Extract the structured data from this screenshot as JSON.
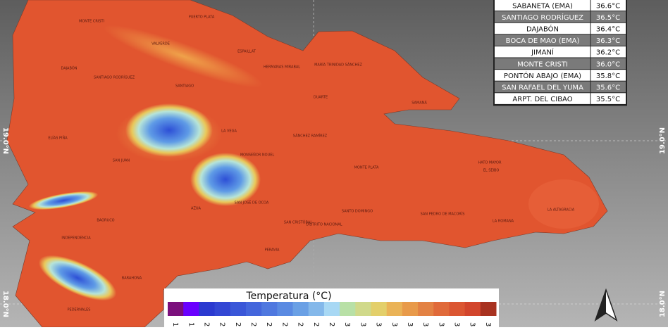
{
  "table": {
    "rows": [
      [
        "SABANETA (EMA)",
        "36.6°C"
      ],
      [
        "SANTIAGO RODRÍGUEZ",
        "36.5°C"
      ],
      [
        "DAJABÓN",
        "36.4°C"
      ],
      [
        "BOCA DE MAO (EMA)",
        "36.3°C"
      ],
      [
        "JIMANÍ",
        "36.2°C"
      ],
      [
        "MONTE CRISTI",
        "36.0°C"
      ],
      [
        "PONTÓN ABAJO (EMA)",
        "35.8°C"
      ],
      [
        "SAN RAFAEL DEL YUMA",
        "35.6°C"
      ],
      [
        "ARPT. DEL CIBAO",
        "35.5°C"
      ]
    ]
  },
  "latitude_labels": [
    "19.0°N",
    "18.0°N"
  ],
  "provinces": [
    "MONTE CRISTI",
    "PUERTO PLATA",
    "VALVERDE",
    "ESPAILLAT",
    "MARÍA TRINIDAD SÁNCHEZ",
    "HERMANAS MIRABAL",
    "DAJABÓN",
    "SANTIAGO RODRÍGUEZ",
    "SANTIAGO",
    "DUARTE",
    "SAMANÁ",
    "LA VEGA",
    "SÁNCHEZ RAMÍREZ",
    "ELÍAS PIÑA",
    "MONSEÑOR NOUEL",
    "SAN JUAN",
    "MONTE PLATA",
    "HATO MAYOR",
    "EL SEIBO",
    "SAN JOSÉ DE OCOA",
    "AZUA",
    "SANTO DOMINGO",
    "SAN PEDRO DE MACORÍS",
    "LA ROMANA",
    "LA ALTAGRACIA",
    "BAORUCO",
    "SAN CRISTÓBAL",
    "DISTRITO NACIONAL",
    "INDEPENDENCIA",
    "PERAVIA",
    "BARAHONA",
    "PEDERNALES"
  ],
  "legend": {
    "title": "Temperatura (°C)",
    "colors": [
      "#7b0f7c",
      "#6a00ff",
      "#2b3ad0",
      "#3347d4",
      "#3a57d8",
      "#4466dc",
      "#4f78df",
      "#5a8ae2",
      "#6aa0e5",
      "#84b8ea",
      "#a8d8f4",
      "#b8e0a6",
      "#d0d98a",
      "#e3cf6a",
      "#eab357",
      "#e89a4a",
      "#e38244",
      "#e06a3a",
      "#db5632",
      "#d2452c",
      "#a83220"
    ],
    "tick_labels": [
      "1",
      "1",
      "2",
      "2",
      "2",
      "2",
      "2",
      "2",
      "2",
      "2",
      "2",
      "3",
      "3",
      "3",
      "3",
      "3",
      "3",
      "3",
      "3",
      "3",
      "3"
    ]
  }
}
